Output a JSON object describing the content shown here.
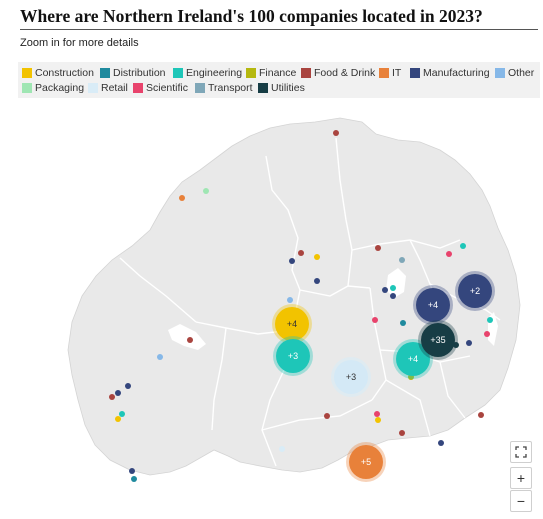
{
  "header": {
    "title": "Where are Northern Ireland's 100 companies located in 2023?",
    "subtitle": "Zoom in for more details"
  },
  "legend": [
    {
      "label": "Construction",
      "color": "#f2c300"
    },
    {
      "label": "Distribution",
      "color": "#1f8a9e"
    },
    {
      "label": "Engineering",
      "color": "#1ec6b8"
    },
    {
      "label": "Finance",
      "color": "#b5b80f"
    },
    {
      "label": "Food & Drink",
      "color": "#a9443f"
    },
    {
      "label": "IT",
      "color": "#e8813a"
    },
    {
      "label": "Manufacturing",
      "color": "#34467d"
    },
    {
      "label": "Other",
      "color": "#86b8e8"
    },
    {
      "label": "Packaging",
      "color": "#9fe6b3"
    },
    {
      "label": "Retail",
      "color": "#d9ecf7"
    },
    {
      "label": "Scientific",
      "color": "#e8436c"
    },
    {
      "label": "Transport",
      "color": "#7fa7b8"
    },
    {
      "label": "Utilities",
      "color": "#173d45"
    }
  ],
  "clusters": [
    {
      "label": "+4",
      "category": "Construction"
    },
    {
      "label": "+3",
      "category": "Engineering"
    },
    {
      "label": "+3",
      "category": "Retail"
    },
    {
      "label": "+4",
      "category": "Engineering"
    },
    {
      "label": "+4",
      "category": "Manufacturing"
    },
    {
      "label": "+2",
      "category": "Manufacturing"
    },
    {
      "label": "+35",
      "category": "Utilities"
    },
    {
      "label": "+5",
      "category": "IT"
    }
  ],
  "controls": {
    "fullscreen": "fullscreen-icon",
    "zoom_in": "+",
    "zoom_out": "−"
  },
  "colors": {
    "land": "#e9e9e9",
    "border": "#ffffff",
    "water": "#ffffff"
  }
}
